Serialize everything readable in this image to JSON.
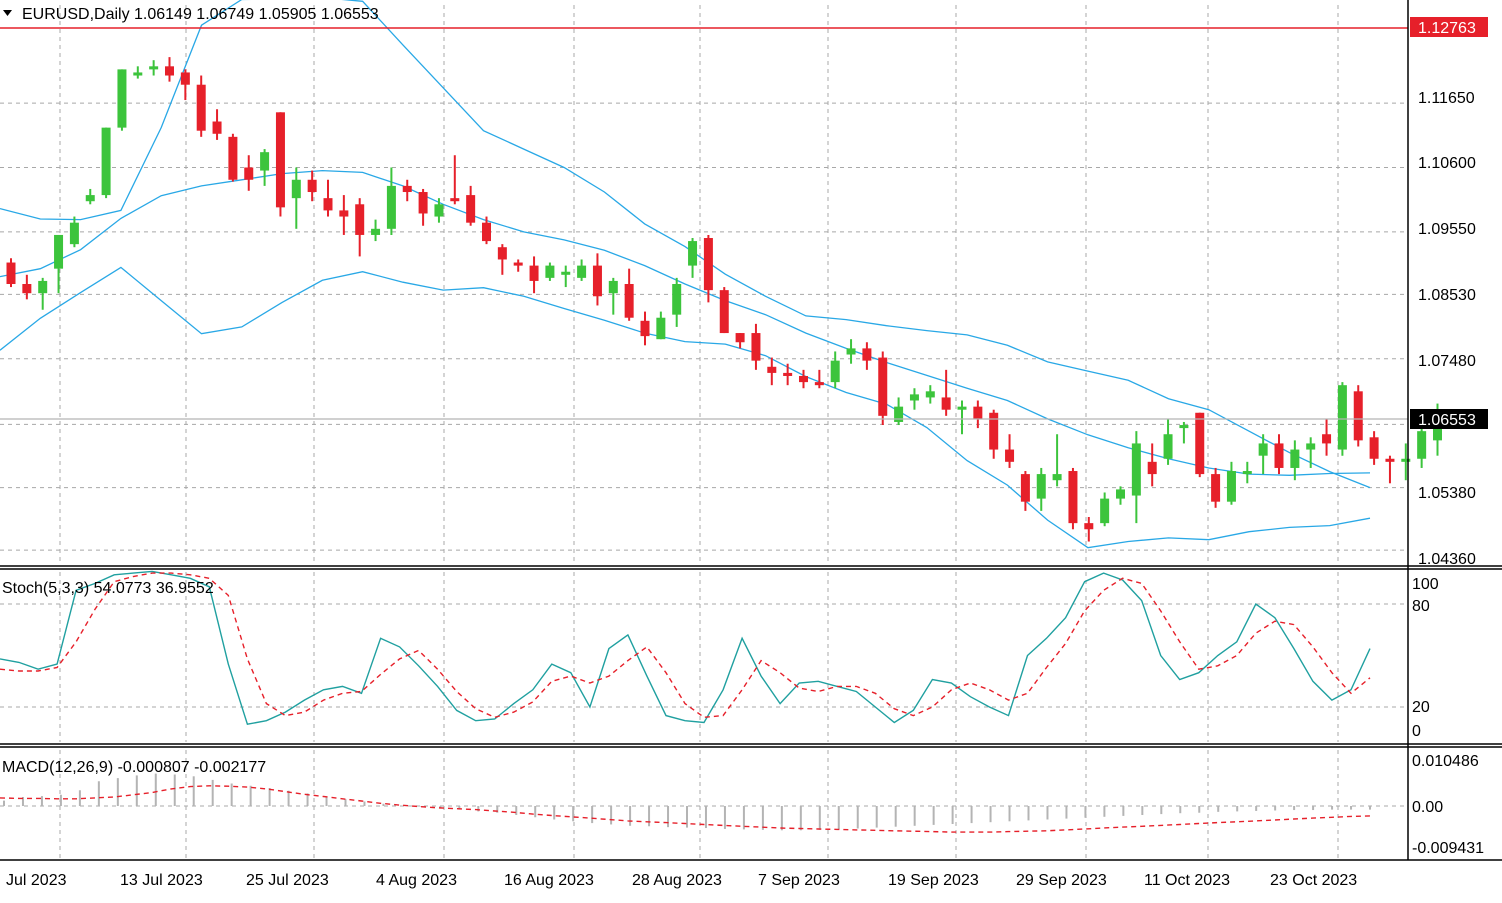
{
  "main": {
    "symbol_line": "EURUSD,Daily  1.06149 1.06749 1.05905 1.06553",
    "price_ticks": [
      "1.12763",
      "1.11650",
      "1.10600",
      "1.09550",
      "1.08530",
      "1.07480",
      "1.06553",
      "1.05380",
      "1.04360"
    ],
    "red_line_label": "1.12763",
    "current_price_label": "1.06553"
  },
  "stoch": {
    "label": "Stoch(5,3,3) 54.0773 36.9552",
    "ticks": [
      "100",
      "80",
      "20",
      "0"
    ]
  },
  "macd": {
    "label": "MACD(12,26,9) -0.000807 -0.002177",
    "ticks": [
      "0.010486",
      "0.00",
      "-0.009431"
    ]
  },
  "x_ticks": [
    "Jul 2023",
    "13 Jul 2023",
    "25 Jul 2023",
    "4 Aug 2023",
    "16 Aug 2023",
    "28 Aug 2023",
    "7 Sep 2023",
    "19 Sep 2023",
    "29 Sep 2023",
    "11 Oct 2023",
    "23 Oct 2023"
  ],
  "chart_data": [
    {
      "type": "candlestick",
      "title": "EURUSD,Daily",
      "last_bar": {
        "open": 1.06149,
        "high": 1.06749,
        "low": 1.05905,
        "close": 1.06553
      },
      "horizontal_line": 1.12763,
      "current_price": 1.06553,
      "ylim": [
        1.0415,
        1.1325
      ],
      "colors": {
        "bull": "#3cc43c",
        "bear": "#e6202a",
        "bands": "#29a8e6",
        "hline": "#e6202a",
        "current_line": "#b4b4b4"
      },
      "candles": [
        [
          1.0905,
          1.0912,
          1.0865,
          1.087
        ],
        [
          1.087,
          1.0885,
          1.0845,
          1.0855
        ],
        [
          1.0855,
          1.088,
          1.0828,
          1.0875
        ],
        [
          1.0895,
          1.0945,
          1.0855,
          1.095
        ],
        [
          1.0935,
          1.098,
          1.093,
          1.097
        ],
        [
          1.1005,
          1.1025,
          1.1,
          1.1015
        ],
        [
          1.1015,
          1.1125,
          1.101,
          1.1125
        ],
        [
          1.1125,
          1.122,
          1.112,
          1.122
        ],
        [
          1.121,
          1.1225,
          1.1205,
          1.1215
        ],
        [
          1.122,
          1.1235,
          1.121,
          1.1225
        ],
        [
          1.1225,
          1.124,
          1.12,
          1.121
        ],
        [
          1.1215,
          1.122,
          1.117,
          1.1195
        ],
        [
          1.1195,
          1.121,
          1.111,
          1.112
        ],
        [
          1.1135,
          1.1155,
          1.1105,
          1.1115
        ],
        [
          1.111,
          1.1115,
          1.1037,
          1.104
        ],
        [
          1.106,
          1.108,
          1.1022,
          1.104
        ],
        [
          1.1055,
          1.109,
          1.103,
          1.1085
        ],
        [
          1.115,
          1.115,
          1.098,
          1.0995
        ],
        [
          1.101,
          1.106,
          1.096,
          1.104
        ],
        [
          1.104,
          1.1055,
          1.1005,
          1.102
        ],
        [
          1.101,
          1.104,
          1.098,
          1.099
        ],
        [
          1.099,
          1.1015,
          1.095,
          1.098
        ],
        [
          1.1,
          1.101,
          1.0915,
          1.095
        ],
        [
          1.095,
          1.0975,
          1.094,
          1.096
        ],
        [
          1.096,
          1.106,
          1.095,
          1.103
        ],
        [
          1.103,
          1.104,
          1.1005,
          1.102
        ],
        [
          1.102,
          1.1025,
          1.0965,
          1.0985
        ],
        [
          1.098,
          1.101,
          1.097,
          1.1
        ],
        [
          1.101,
          1.108,
          1.1,
          1.1005
        ],
        [
          1.1015,
          1.103,
          1.0965,
          1.097
        ],
        [
          1.097,
          1.098,
          1.0935,
          1.094
        ],
        [
          1.093,
          1.0935,
          1.0885,
          1.091
        ],
        [
          1.0905,
          1.091,
          1.089,
          1.09
        ],
        [
          1.09,
          1.0915,
          1.0855,
          1.0875
        ],
        [
          1.088,
          1.0905,
          1.0875,
          1.09
        ],
        [
          1.0885,
          1.09,
          1.0865,
          1.089
        ],
        [
          1.088,
          1.091,
          1.0875,
          1.09
        ],
        [
          1.09,
          1.092,
          1.0835,
          1.085
        ],
        [
          1.0855,
          1.088,
          1.082,
          1.0875
        ],
        [
          1.087,
          1.0895,
          1.081,
          1.0815
        ],
        [
          1.081,
          1.0825,
          1.077,
          1.0785
        ],
        [
          1.078,
          1.0825,
          1.078,
          1.0815
        ],
        [
          1.082,
          1.088,
          1.08,
          1.087
        ],
        [
          1.09,
          1.0945,
          1.088,
          1.094
        ],
        [
          1.0945,
          1.095,
          1.084,
          1.086
        ],
        [
          1.086,
          1.0865,
          1.079,
          1.079
        ],
        [
          1.079,
          1.079,
          1.0765,
          1.0775
        ],
        [
          1.079,
          1.0805,
          1.073,
          1.0745
        ],
        [
          1.0735,
          1.075,
          1.0705,
          1.0725
        ],
        [
          1.0725,
          1.074,
          1.0705,
          1.072
        ],
        [
          1.072,
          1.073,
          1.07,
          1.071
        ],
        [
          1.071,
          1.073,
          1.07,
          1.0705
        ],
        [
          1.071,
          1.076,
          1.07,
          1.0745
        ],
        [
          1.0755,
          1.078,
          1.074,
          1.0765
        ],
        [
          1.0765,
          1.0775,
          1.073,
          1.0745
        ],
        [
          1.075,
          1.076,
          1.064,
          1.0655
        ],
        [
          1.0645,
          1.0685,
          1.064,
          1.067
        ],
        [
          1.068,
          1.07,
          1.0665,
          1.069
        ],
        [
          1.0685,
          1.0705,
          1.0675,
          1.0695
        ],
        [
          1.0685,
          1.073,
          1.0655,
          1.0665
        ],
        [
          1.0665,
          1.068,
          1.0625,
          1.067
        ],
        [
          1.067,
          1.068,
          1.0635,
          1.065
        ],
        [
          1.066,
          1.0665,
          1.0585,
          1.06
        ],
        [
          1.06,
          1.0625,
          1.057,
          1.058
        ],
        [
          1.056,
          1.0565,
          1.05,
          1.0515
        ],
        [
          1.052,
          1.057,
          1.05,
          1.056
        ],
        [
          1.055,
          1.0625,
          1.054,
          1.056
        ],
        [
          1.0565,
          1.057,
          1.047,
          1.048
        ],
        [
          1.048,
          1.049,
          1.045,
          1.047
        ],
        [
          1.048,
          1.053,
          1.0475,
          1.052
        ],
        [
          1.052,
          1.054,
          1.051,
          1.0535
        ],
        [
          1.0525,
          1.063,
          1.048,
          1.061
        ],
        [
          1.058,
          1.061,
          1.054,
          1.056
        ],
        [
          1.0585,
          1.065,
          1.0575,
          1.0625
        ],
        [
          1.0635,
          1.0645,
          1.061,
          1.064
        ],
        [
          1.066,
          1.066,
          1.0555,
          1.056
        ],
        [
          1.056,
          1.057,
          1.0505,
          1.0515
        ],
        [
          1.0515,
          1.058,
          1.051,
          1.0565
        ],
        [
          1.056,
          1.058,
          1.0545,
          1.0565
        ],
        [
          1.059,
          1.0625,
          1.056,
          1.061
        ],
        [
          1.061,
          1.0625,
          1.056,
          1.057
        ],
        [
          1.057,
          1.0615,
          1.055,
          1.06
        ],
        [
          1.06,
          1.062,
          1.057,
          1.061
        ],
        [
          1.0625,
          1.065,
          1.059,
          1.061
        ],
        [
          1.06,
          1.071,
          1.059,
          1.0705
        ],
        [
          1.0695,
          1.0705,
          1.0605,
          1.0615
        ],
        [
          1.062,
          1.063,
          1.0575,
          1.0585
        ],
        [
          1.0585,
          1.059,
          1.0545,
          1.058
        ],
        [
          1.058,
          1.061,
          1.055,
          1.0585
        ],
        [
          1.0585,
          1.0645,
          1.057,
          1.063
        ],
        [
          1.0615,
          1.0675,
          1.059,
          1.0655
        ]
      ],
      "bands": {
        "upper": [
          1.0993,
          1.0976,
          1.0975,
          1.099,
          1.1125,
          1.1292,
          1.1334,
          1.1335,
          1.1337,
          1.1331,
          1.126,
          1.119,
          1.112,
          1.109,
          1.106,
          1.102,
          1.0968,
          1.0931,
          1.0886,
          1.085,
          1.0818,
          1.0812,
          1.0802,
          1.0794,
          1.0787,
          1.077,
          1.0743,
          1.0728,
          1.0713,
          1.0683,
          1.0665,
          1.063,
          1.0595,
          1.0564,
          1.0538
        ],
        "middle": [
          1.0882,
          1.0895,
          1.0926,
          1.0977,
          1.1014,
          1.103,
          1.104,
          1.105,
          1.1055,
          1.1052,
          1.103,
          1.1,
          1.0975,
          1.0955,
          1.0942,
          1.0925,
          1.09,
          1.087,
          1.0843,
          1.082,
          1.079,
          1.0765,
          1.0742,
          1.0721,
          1.07,
          1.068,
          1.065,
          1.0624,
          1.0603,
          1.0585,
          1.057,
          1.056,
          1.0558,
          1.0561,
          1.0562
        ],
        "lower": [
          1.0762,
          1.0814,
          1.0856,
          1.0897,
          1.0843,
          1.0789,
          1.08,
          1.084,
          1.0876,
          1.089,
          1.0873,
          1.086,
          1.0864,
          1.085,
          1.083,
          1.0811,
          1.079,
          1.0776,
          1.0772,
          1.0753,
          1.0719,
          1.0693,
          1.0674,
          1.0636,
          1.0582,
          1.0542,
          1.0485,
          1.044,
          1.045,
          1.0456,
          1.0453,
          1.0466,
          1.0473,
          1.0476,
          1.0488
        ]
      }
    },
    {
      "type": "line",
      "title": "Stoch(5,3,3) 54.0773 36.9552",
      "ylim": [
        0,
        100
      ],
      "levels": [
        20,
        80
      ],
      "series": [
        {
          "name": "main",
          "color": "#20a0a0",
          "values": [
            48,
            46,
            42,
            45,
            88,
            92,
            97,
            98,
            99,
            97,
            95,
            90,
            45,
            10,
            12,
            17,
            24,
            30,
            32,
            28,
            60,
            55,
            44,
            32,
            18,
            12,
            13,
            22,
            30,
            45,
            40,
            20,
            54,
            62,
            38,
            15,
            12,
            11,
            30,
            60,
            38,
            22,
            34,
            35,
            32,
            29,
            20,
            11,
            18,
            36,
            34,
            26,
            20,
            15,
            50,
            60,
            72,
            93,
            98,
            94,
            82,
            50,
            36,
            40,
            50,
            58,
            80,
            72,
            54,
            35,
            24,
            30,
            54
          ]
        },
        {
          "name": "signal",
          "color": "#e6202a",
          "values": [
            42,
            41,
            41,
            43,
            58,
            77,
            93,
            96,
            98,
            98,
            97,
            95,
            85,
            48,
            22,
            15,
            17,
            24,
            28,
            29,
            39,
            48,
            53,
            42,
            29,
            19,
            14,
            17,
            23,
            35,
            38,
            34,
            38,
            47,
            55,
            40,
            22,
            14,
            15,
            30,
            47,
            40,
            31,
            29,
            32,
            32,
            28,
            19,
            15,
            20,
            30,
            34,
            30,
            24,
            28,
            43,
            57,
            76,
            88,
            95,
            92,
            76,
            58,
            42,
            44,
            50,
            63,
            70,
            68,
            55,
            40,
            28,
            37
          ]
        }
      ]
    },
    {
      "type": "bar",
      "title": "MACD(12,26,9) -0.000807 -0.002177",
      "ylim": [
        -0.009431,
        0.010486
      ],
      "series": [
        {
          "name": "macd",
          "color": "#b4b4b4",
          "values": [
            0.0012,
            0.002,
            0.0022,
            0.0025,
            0.0035,
            0.0055,
            0.0062,
            0.0068,
            0.0072,
            0.007,
            0.0066,
            0.0058,
            0.005,
            0.0045,
            0.004,
            0.0034,
            0.0028,
            0.002,
            0.0015,
            0.001,
            0.0005,
            0.0001,
            -0.0002,
            -0.0005,
            -0.0008,
            -0.0012,
            -0.0015,
            -0.002,
            -0.0025,
            -0.003,
            -0.0034,
            -0.0038,
            -0.0041,
            -0.0044,
            -0.0045,
            -0.0047,
            -0.0048,
            -0.0049,
            -0.0051,
            -0.0052,
            -0.0053,
            -0.0054,
            -0.0054,
            -0.0053,
            -0.0052,
            -0.005,
            -0.0048,
            -0.0046,
            -0.0044,
            -0.0042,
            -0.004,
            -0.0038,
            -0.0036,
            -0.0034,
            -0.0032,
            -0.003,
            -0.0028,
            -0.0026,
            -0.0024,
            -0.0022,
            -0.002,
            -0.0018,
            -0.0016,
            -0.0015,
            -0.0013,
            -0.0012,
            -0.0011,
            -0.001,
            -0.0009,
            -0.0009,
            -0.0008,
            -0.0008,
            -0.0008
          ]
        },
        {
          "name": "signal",
          "color": "#e6202a",
          "values": [
            0.0018,
            0.0017,
            0.0017,
            0.0016,
            0.0016,
            0.0018,
            0.002,
            0.0025,
            0.003,
            0.0038,
            0.0043,
            0.0045,
            0.0044,
            0.0042,
            0.0038,
            0.0032,
            0.0026,
            0.0021,
            0.0016,
            0.0011,
            0.0006,
            0.0002,
            -0.0001,
            -0.0004,
            -0.0006,
            -0.0008,
            -0.0011,
            -0.0014,
            -0.0018,
            -0.0021,
            -0.0024,
            -0.0027,
            -0.003,
            -0.0033,
            -0.0035,
            -0.0037,
            -0.0039,
            -0.0041,
            -0.0043,
            -0.0045,
            -0.0047,
            -0.0049,
            -0.005,
            -0.0051,
            -0.0052,
            -0.0053,
            -0.0054,
            -0.0055,
            -0.0056,
            -0.0057,
            -0.0058,
            -0.0058,
            -0.0058,
            -0.0057,
            -0.0056,
            -0.0055,
            -0.0053,
            -0.0051,
            -0.0049,
            -0.0047,
            -0.0045,
            -0.0043,
            -0.0041,
            -0.0039,
            -0.0037,
            -0.0035,
            -0.0033,
            -0.0031,
            -0.0029,
            -0.0027,
            -0.0025,
            -0.0023,
            -0.0022
          ]
        }
      ]
    }
  ]
}
